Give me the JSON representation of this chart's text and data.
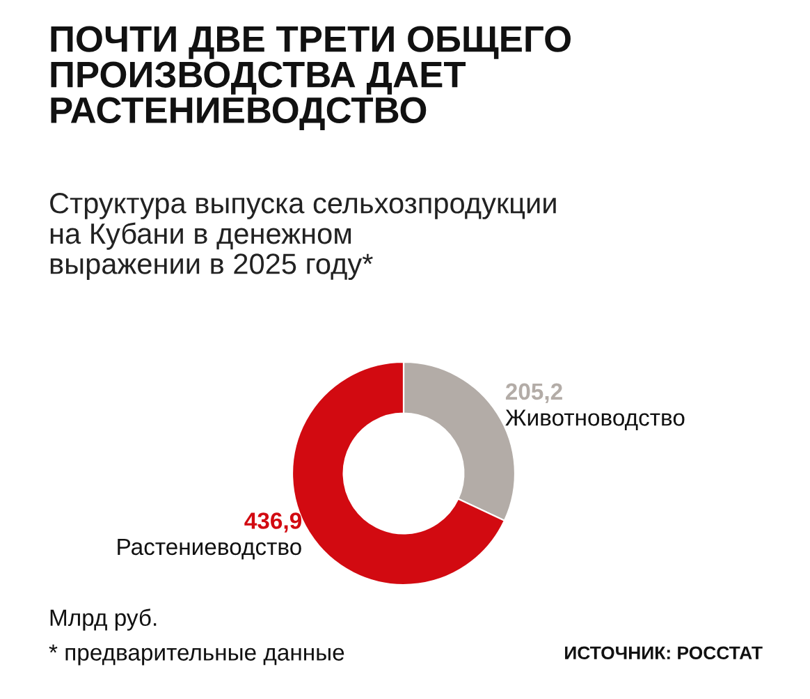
{
  "chart_data": {
    "type": "donut",
    "title": "ПОЧТИ ДВЕ ТРЕТИ ОБЩЕГО\nПРОИЗВОДСТВА ДАЕТ\nРАСТЕНИЕВОДСТВО",
    "subtitle": "Структура выпуска сельхозпродукции\nна Кубани в денежном\nвыражении в 2025 году*",
    "categories": [
      "Животноводство",
      "Растениеводство"
    ],
    "values": [
      205.2,
      436.9
    ],
    "value_labels": [
      "205,2",
      "436,9"
    ],
    "colors": [
      "#b3aca7",
      "#d20a11"
    ],
    "annotations": [
      "Млрд руб.",
      "* предварительные данные",
      "ИСТОЧНИК: РОССТАТ"
    ]
  }
}
